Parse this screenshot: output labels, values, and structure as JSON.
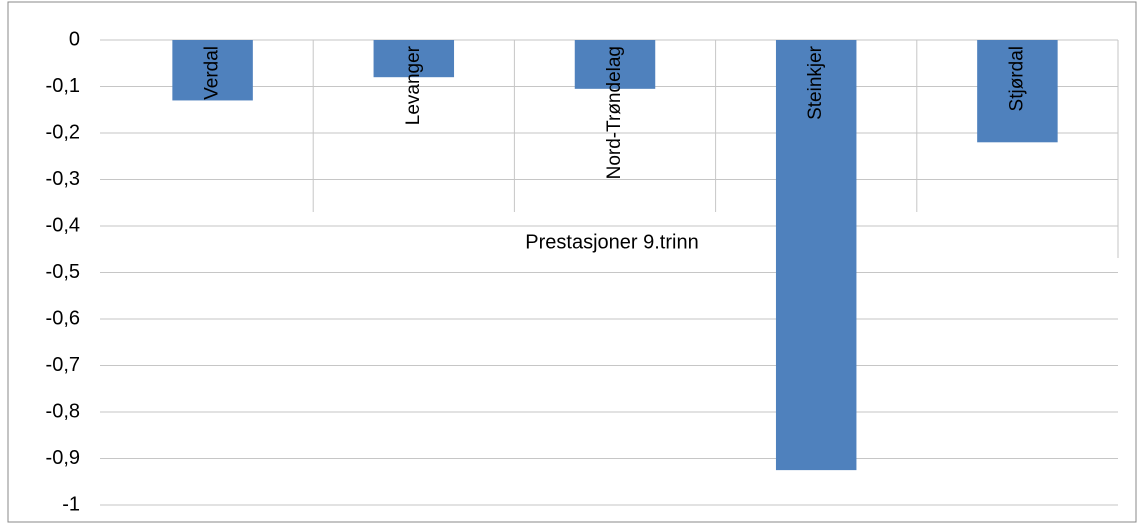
{
  "chart_data": {
    "type": "bar",
    "x_label": "Prestasjoner 9.trinn",
    "categories": [
      "Verdal",
      "Levanger",
      "Nord-Trøndelag",
      "Steinkjer",
      "Stjørdal"
    ],
    "values": [
      -0.13,
      -0.08,
      -0.105,
      -0.925,
      -0.22
    ],
    "color": "#4f81bd",
    "ylim": [
      -1,
      0
    ],
    "yticks": [
      0,
      {
        "value": -0.1,
        "label": "-0,1"
      },
      {
        "value": -0.2,
        "label": "-0,2"
      },
      {
        "value": -0.3,
        "label": "-0,3"
      },
      {
        "value": -0.4,
        "label": "-0,4"
      },
      {
        "value": -0.5,
        "label": "-0,5"
      },
      {
        "value": -0.6,
        "label": "-0,6"
      },
      {
        "value": -0.7,
        "label": "-0,7"
      },
      {
        "value": -0.8,
        "label": "-0,8"
      },
      {
        "value": -0.9,
        "label": "-0,9"
      },
      -1
    ],
    "grid": true
  }
}
